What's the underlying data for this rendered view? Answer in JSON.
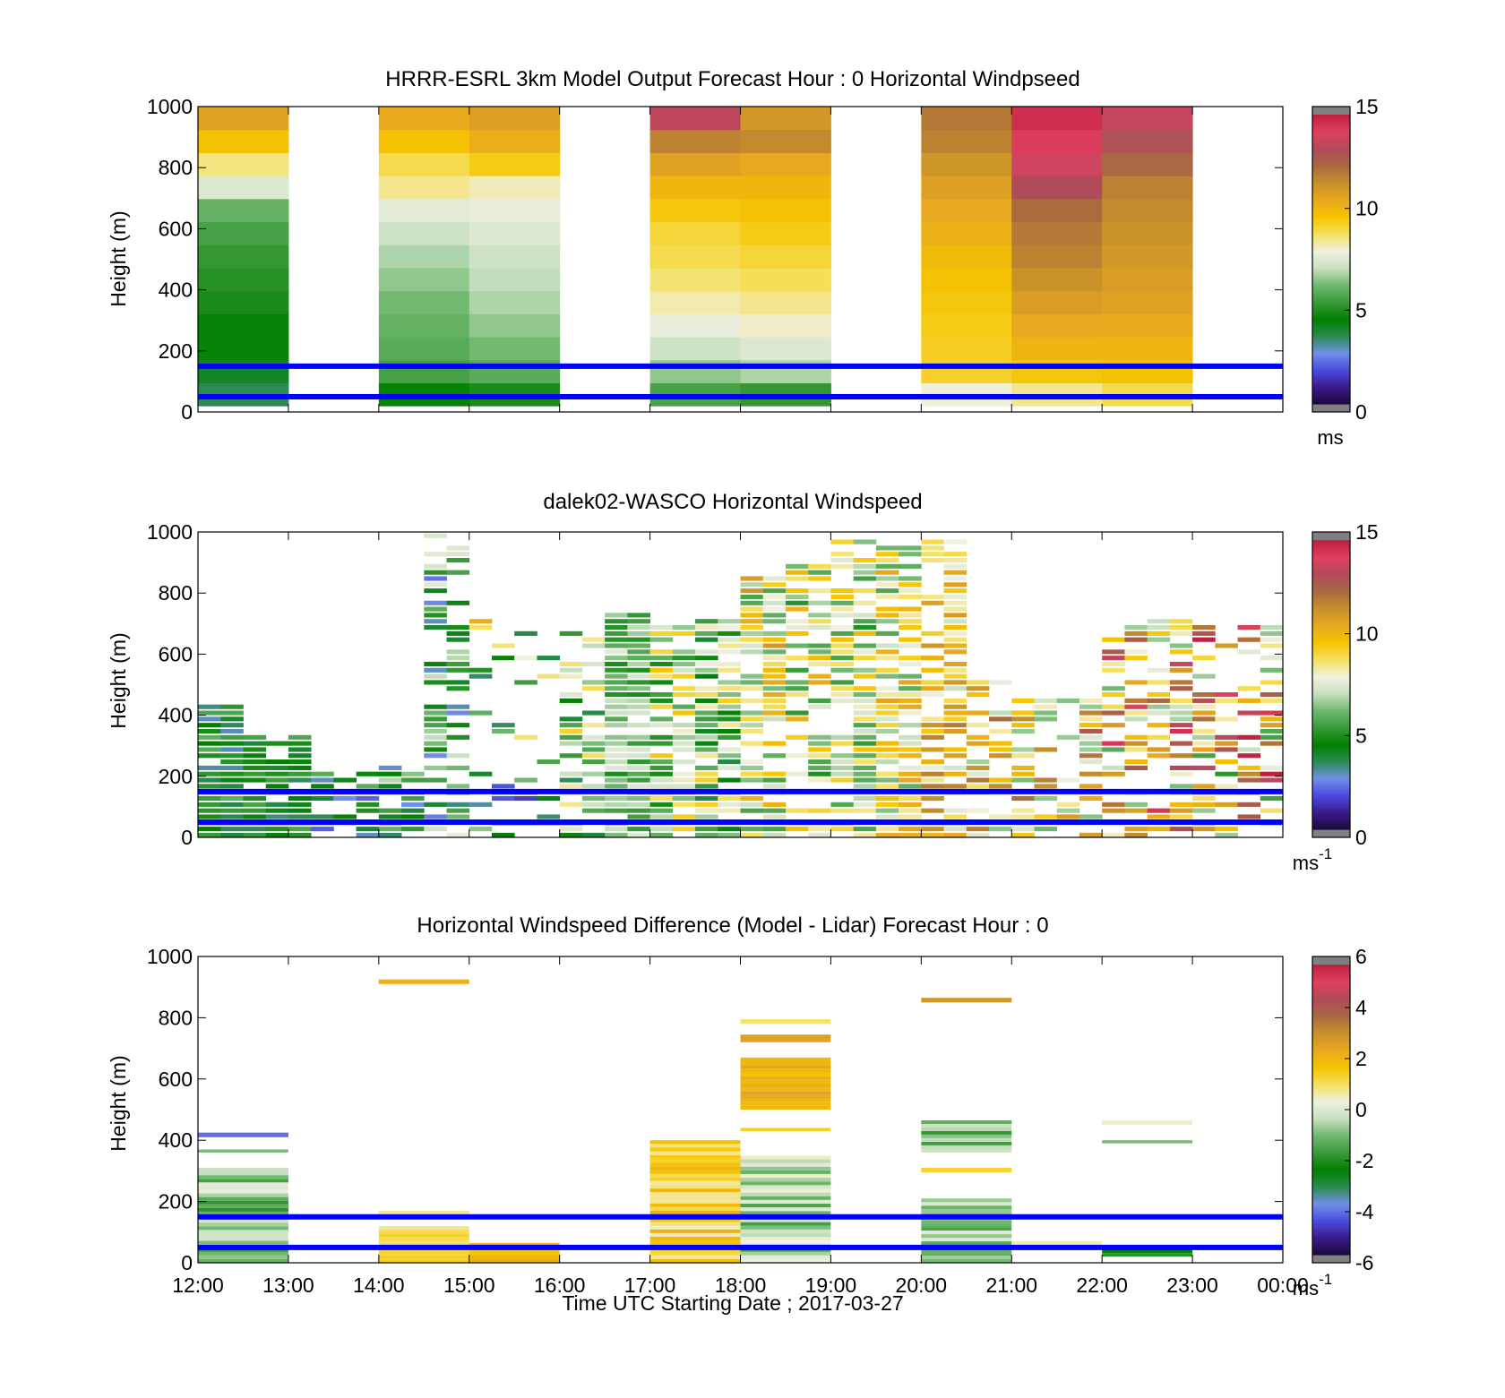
{
  "colors": {
    "speed_colormap": [
      "#1a0a3a",
      "#3a1a8a",
      "#4a4ae0",
      "#7090e8",
      "#2a8a50",
      "#008000",
      "#3a9a3a",
      "#70b870",
      "#c8e0c0",
      "#f0f0e0",
      "#f5e060",
      "#f5c400",
      "#e8a820",
      "#c8902a",
      "#a86a40",
      "#b04a5a",
      "#e04060",
      "#c02040"
    ],
    "diff_colormap": [
      "#1a0a3a",
      "#3a1a8a",
      "#4a4ae0",
      "#7090e8",
      "#2a8a50",
      "#008000",
      "#3a9a3a",
      "#70b870",
      "#c8e0c0",
      "#f0f0e0",
      "#f5e060",
      "#f5c400",
      "#e8a820",
      "#c8902a",
      "#a86a40",
      "#b04a5a",
      "#e04060",
      "#c02040"
    ],
    "reference_line": "#0000ff",
    "colorbar_end": "#808080"
  },
  "chart_data": [
    {
      "type": "heatmap",
      "title": "HRRR-ESRL 3km Model Output   Forecast Hour : 0 Horizontal Windpseed",
      "ylabel": "Height (m)",
      "xlabel": "",
      "yticks": [
        "0",
        "200",
        "400",
        "600",
        "800",
        "1000"
      ],
      "ylim": [
        0,
        1000
      ],
      "xlim": [
        "12:00",
        "00:00"
      ],
      "reference_lines_m": [
        150,
        50
      ],
      "colorbar": {
        "ticks": [
          "0",
          "5",
          "10",
          "15"
        ],
        "range": [
          0,
          15
        ],
        "unit": "ms"
      },
      "columns": [
        {
          "start": "12:00",
          "end": "13:00",
          "top_m": 1000,
          "bottom_m": 20,
          "values": [
            3.5,
            4,
            4.5,
            4.5,
            4.8,
            5,
            5.2,
            5.5,
            6,
            7.5,
            8.6,
            9.8,
            10.8
          ]
        },
        {
          "start": "14:00",
          "end": "15:00",
          "top_m": 1000,
          "bottom_m": 20,
          "values": [
            4.5,
            5.5,
            5.8,
            6,
            6.2,
            6.5,
            6.8,
            7.2,
            7.6,
            8.5,
            9,
            9.8,
            10.5
          ]
        },
        {
          "start": "15:00",
          "end": "16:00",
          "top_m": 1000,
          "bottom_m": 20,
          "values": [
            4.8,
            5.8,
            6.2,
            6.5,
            6.8,
            7,
            7.2,
            7.5,
            7.8,
            8.2,
            9.5,
            10.4,
            10.9
          ]
        },
        {
          "start": "17:00",
          "end": "18:00",
          "top_m": 1000,
          "bottom_m": 20,
          "values": [
            5.5,
            6.5,
            7.2,
            7.8,
            8.3,
            8.7,
            9,
            9.2,
            9.6,
            10.1,
            10.8,
            11.8,
            13.5
          ]
        },
        {
          "start": "18:00",
          "end": "19:00",
          "top_m": 1000,
          "bottom_m": 20,
          "values": [
            5.2,
            6.8,
            7.5,
            8.1,
            8.5,
            8.9,
            9.2,
            9.5,
            9.8,
            10.1,
            10.6,
            11.6,
            11.2
          ]
        },
        {
          "start": "20:00",
          "end": "21:00",
          "top_m": 1000,
          "bottom_m": 20,
          "values": [
            8,
            9.3,
            9.4,
            9.5,
            9.6,
            9.8,
            10,
            10.3,
            10.6,
            10.9,
            11.3,
            11.8,
            12
          ]
        },
        {
          "start": "21:00",
          "end": "22:00",
          "top_m": 1000,
          "bottom_m": 20,
          "values": [
            8.5,
            9.6,
            10.2,
            10.6,
            11.0,
            11.4,
            11.8,
            12,
            12.3,
            13.2,
            13.8,
            14.2,
            14.6
          ]
        },
        {
          "start": "22:00",
          "end": "23:00",
          "top_m": 1000,
          "bottom_m": 20,
          "values": [
            9,
            9.8,
            10.2,
            10.5,
            10.8,
            11.0,
            11.2,
            11.4,
            11.6,
            11.8,
            12.4,
            13,
            13.6
          ]
        }
      ]
    },
    {
      "type": "heatmap",
      "title": "dalek02-WASCO  Horizontal Windspeed",
      "ylabel": "Height (m)",
      "xlabel": "",
      "yticks": [
        "0",
        "200",
        "400",
        "600",
        "800",
        "1000"
      ],
      "ylim": [
        0,
        1000
      ],
      "xlim": [
        "12:00",
        "00:00"
      ],
      "reference_lines_m": [
        150,
        50
      ],
      "colorbar": {
        "ticks": [
          "0",
          "5",
          "10",
          "15"
        ],
        "range": [
          0,
          15
        ],
        "unit": "ms",
        "unit_superscript": "-1"
      },
      "time_bin_minutes": 15,
      "height_bin_m": 20,
      "bands": [
        {
          "start": "12:00",
          "end": "12:30",
          "from_m": 0,
          "to_m": 440,
          "fill": 0.92,
          "mean": 4.3,
          "spread": 1.0
        },
        {
          "start": "12:30",
          "end": "13:15",
          "from_m": 0,
          "to_m": 330,
          "fill": 0.9,
          "mean": 4.5,
          "spread": 0.8
        },
        {
          "start": "13:15",
          "end": "14:00",
          "from_m": 0,
          "to_m": 220,
          "fill": 0.55,
          "mean": 4.2,
          "spread": 1.6
        },
        {
          "start": "14:00",
          "end": "14:30",
          "from_m": 0,
          "to_m": 240,
          "fill": 0.75,
          "mean": 5.0,
          "spread": 1.5
        },
        {
          "start": "14:30",
          "end": "15:00",
          "from_m": 0,
          "to_m": 1000,
          "fill": 0.55,
          "mean": 5.0,
          "spread": 1.8
        },
        {
          "start": "15:00",
          "end": "16:00",
          "from_m": 0,
          "to_m": 200,
          "fill": 0.35,
          "mean": 4.0,
          "spread": 2.0
        },
        {
          "start": "15:00",
          "end": "16:00",
          "from_m": 200,
          "to_m": 720,
          "fill": 0.15,
          "mean": 7.0,
          "spread": 2.5
        },
        {
          "start": "16:00",
          "end": "16:30",
          "from_m": 0,
          "to_m": 680,
          "fill": 0.6,
          "mean": 6.5,
          "spread": 2.0
        },
        {
          "start": "16:30",
          "end": "17:00",
          "from_m": 0,
          "to_m": 740,
          "fill": 0.92,
          "mean": 6.2,
          "spread": 0.9
        },
        {
          "start": "17:00",
          "end": "17:30",
          "from_m": 0,
          "to_m": 700,
          "fill": 0.75,
          "mean": 7.2,
          "spread": 1.6
        },
        {
          "start": "17:30",
          "end": "18:00",
          "from_m": 0,
          "to_m": 720,
          "fill": 0.85,
          "mean": 6.5,
          "spread": 1.8
        },
        {
          "start": "18:00",
          "end": "18:30",
          "from_m": 0,
          "to_m": 860,
          "fill": 0.75,
          "mean": 8.3,
          "spread": 1.8
        },
        {
          "start": "18:30",
          "end": "19:00",
          "from_m": 0,
          "to_m": 900,
          "fill": 0.6,
          "mean": 7.8,
          "spread": 1.8
        },
        {
          "start": "19:00",
          "end": "19:30",
          "from_m": 0,
          "to_m": 980,
          "fill": 0.75,
          "mean": 7.5,
          "spread": 1.8
        },
        {
          "start": "19:30",
          "end": "20:00",
          "from_m": 0,
          "to_m": 960,
          "fill": 0.8,
          "mean": 8.2,
          "spread": 1.6
        },
        {
          "start": "20:00",
          "end": "20:30",
          "from_m": 0,
          "to_m": 1000,
          "fill": 0.72,
          "mean": 9.5,
          "spread": 1.6
        },
        {
          "start": "20:30",
          "end": "21:00",
          "from_m": 0,
          "to_m": 520,
          "fill": 0.6,
          "mean": 9.5,
          "spread": 2.0
        },
        {
          "start": "21:00",
          "end": "22:00",
          "from_m": 0,
          "to_m": 460,
          "fill": 0.5,
          "mean": 9.3,
          "spread": 2.2
        },
        {
          "start": "22:00",
          "end": "23:00",
          "from_m": 0,
          "to_m": 720,
          "fill": 0.55,
          "mean": 10.2,
          "spread": 2.8
        },
        {
          "start": "23:00",
          "end": "00:00",
          "from_m": 0,
          "to_m": 720,
          "fill": 0.55,
          "mean": 10.5,
          "spread": 3.5
        }
      ]
    },
    {
      "type": "heatmap",
      "title": "Horizontal Windspeed Difference (Model - Lidar) Forecast Hour : 0",
      "ylabel": "Height (m)",
      "xlabel": "Time UTC  Starting Date ; 2017-03-27",
      "xticks": [
        "12:00",
        "13:00",
        "14:00",
        "15:00",
        "16:00",
        "17:00",
        "18:00",
        "19:00",
        "20:00",
        "21:00",
        "22:00",
        "23:00",
        "00:00"
      ],
      "yticks": [
        "0",
        "200",
        "400",
        "600",
        "800",
        "1000"
      ],
      "ylim": [
        0,
        1000
      ],
      "xlim": [
        "12:00",
        "00:00"
      ],
      "reference_lines_m": [
        150,
        50
      ],
      "colorbar": {
        "ticks": [
          "-6",
          "-4",
          "-2",
          "0",
          "2",
          "4",
          "6"
        ],
        "range": [
          -6,
          6
        ],
        "unit": "ms",
        "unit_superscript": "-1"
      },
      "segments": [
        {
          "start": "12:00",
          "end": "13:00",
          "from_m": 0,
          "to_m": 310,
          "mean": -0.8,
          "spread": 1.2
        },
        {
          "start": "12:00",
          "end": "13:00",
          "from_m": 410,
          "to_m": 425,
          "mean": -4.2,
          "spread": 0
        },
        {
          "start": "12:00",
          "end": "13:00",
          "from_m": 360,
          "to_m": 370,
          "mean": -1.0,
          "spread": 0
        },
        {
          "start": "14:00",
          "end": "15:00",
          "from_m": 910,
          "to_m": 925,
          "mean": 2.3,
          "spread": 0
        },
        {
          "start": "14:00",
          "end": "15:00",
          "from_m": 160,
          "to_m": 170,
          "mean": 0.8,
          "spread": 0
        },
        {
          "start": "14:00",
          "end": "15:00",
          "from_m": 0,
          "to_m": 120,
          "mean": 1.2,
          "spread": 0.4
        },
        {
          "start": "15:00",
          "end": "16:00",
          "from_m": 0,
          "to_m": 65,
          "mean": 2.0,
          "spread": 0.3
        },
        {
          "start": "17:00",
          "end": "18:00",
          "from_m": 0,
          "to_m": 400,
          "mean": 1.4,
          "spread": 0.9
        },
        {
          "start": "18:00",
          "end": "19:00",
          "from_m": 500,
          "to_m": 670,
          "mean": 2.0,
          "spread": 0.6
        },
        {
          "start": "18:00",
          "end": "19:00",
          "from_m": 720,
          "to_m": 745,
          "mean": 2.4,
          "spread": 0.3
        },
        {
          "start": "18:00",
          "end": "19:00",
          "from_m": 780,
          "to_m": 795,
          "mean": 1.0,
          "spread": 0
        },
        {
          "start": "18:00",
          "end": "19:00",
          "from_m": 430,
          "to_m": 440,
          "mean": 1.5,
          "spread": 0
        },
        {
          "start": "18:00",
          "end": "19:00",
          "from_m": 0,
          "to_m": 350,
          "mean": -0.6,
          "spread": 1.2
        },
        {
          "start": "20:00",
          "end": "21:00",
          "from_m": 850,
          "to_m": 865,
          "mean": 3.0,
          "spread": 0
        },
        {
          "start": "20:00",
          "end": "21:00",
          "from_m": 360,
          "to_m": 465,
          "mean": -1.0,
          "spread": 1.0
        },
        {
          "start": "20:00",
          "end": "21:00",
          "from_m": 295,
          "to_m": 310,
          "mean": 1.4,
          "spread": 0
        },
        {
          "start": "20:00",
          "end": "21:00",
          "from_m": 0,
          "to_m": 210,
          "mean": -0.8,
          "spread": 0.9
        },
        {
          "start": "21:00",
          "end": "22:00",
          "from_m": 60,
          "to_m": 70,
          "mean": 0.6,
          "spread": 0
        },
        {
          "start": "22:00",
          "end": "23:00",
          "from_m": 450,
          "to_m": 465,
          "mean": 0.5,
          "spread": 0
        },
        {
          "start": "22:00",
          "end": "23:00",
          "from_m": 390,
          "to_m": 400,
          "mean": -1.0,
          "spread": 0
        },
        {
          "start": "22:00",
          "end": "23:00",
          "from_m": 20,
          "to_m": 55,
          "mean": -2.2,
          "spread": 0.3
        }
      ]
    }
  ]
}
